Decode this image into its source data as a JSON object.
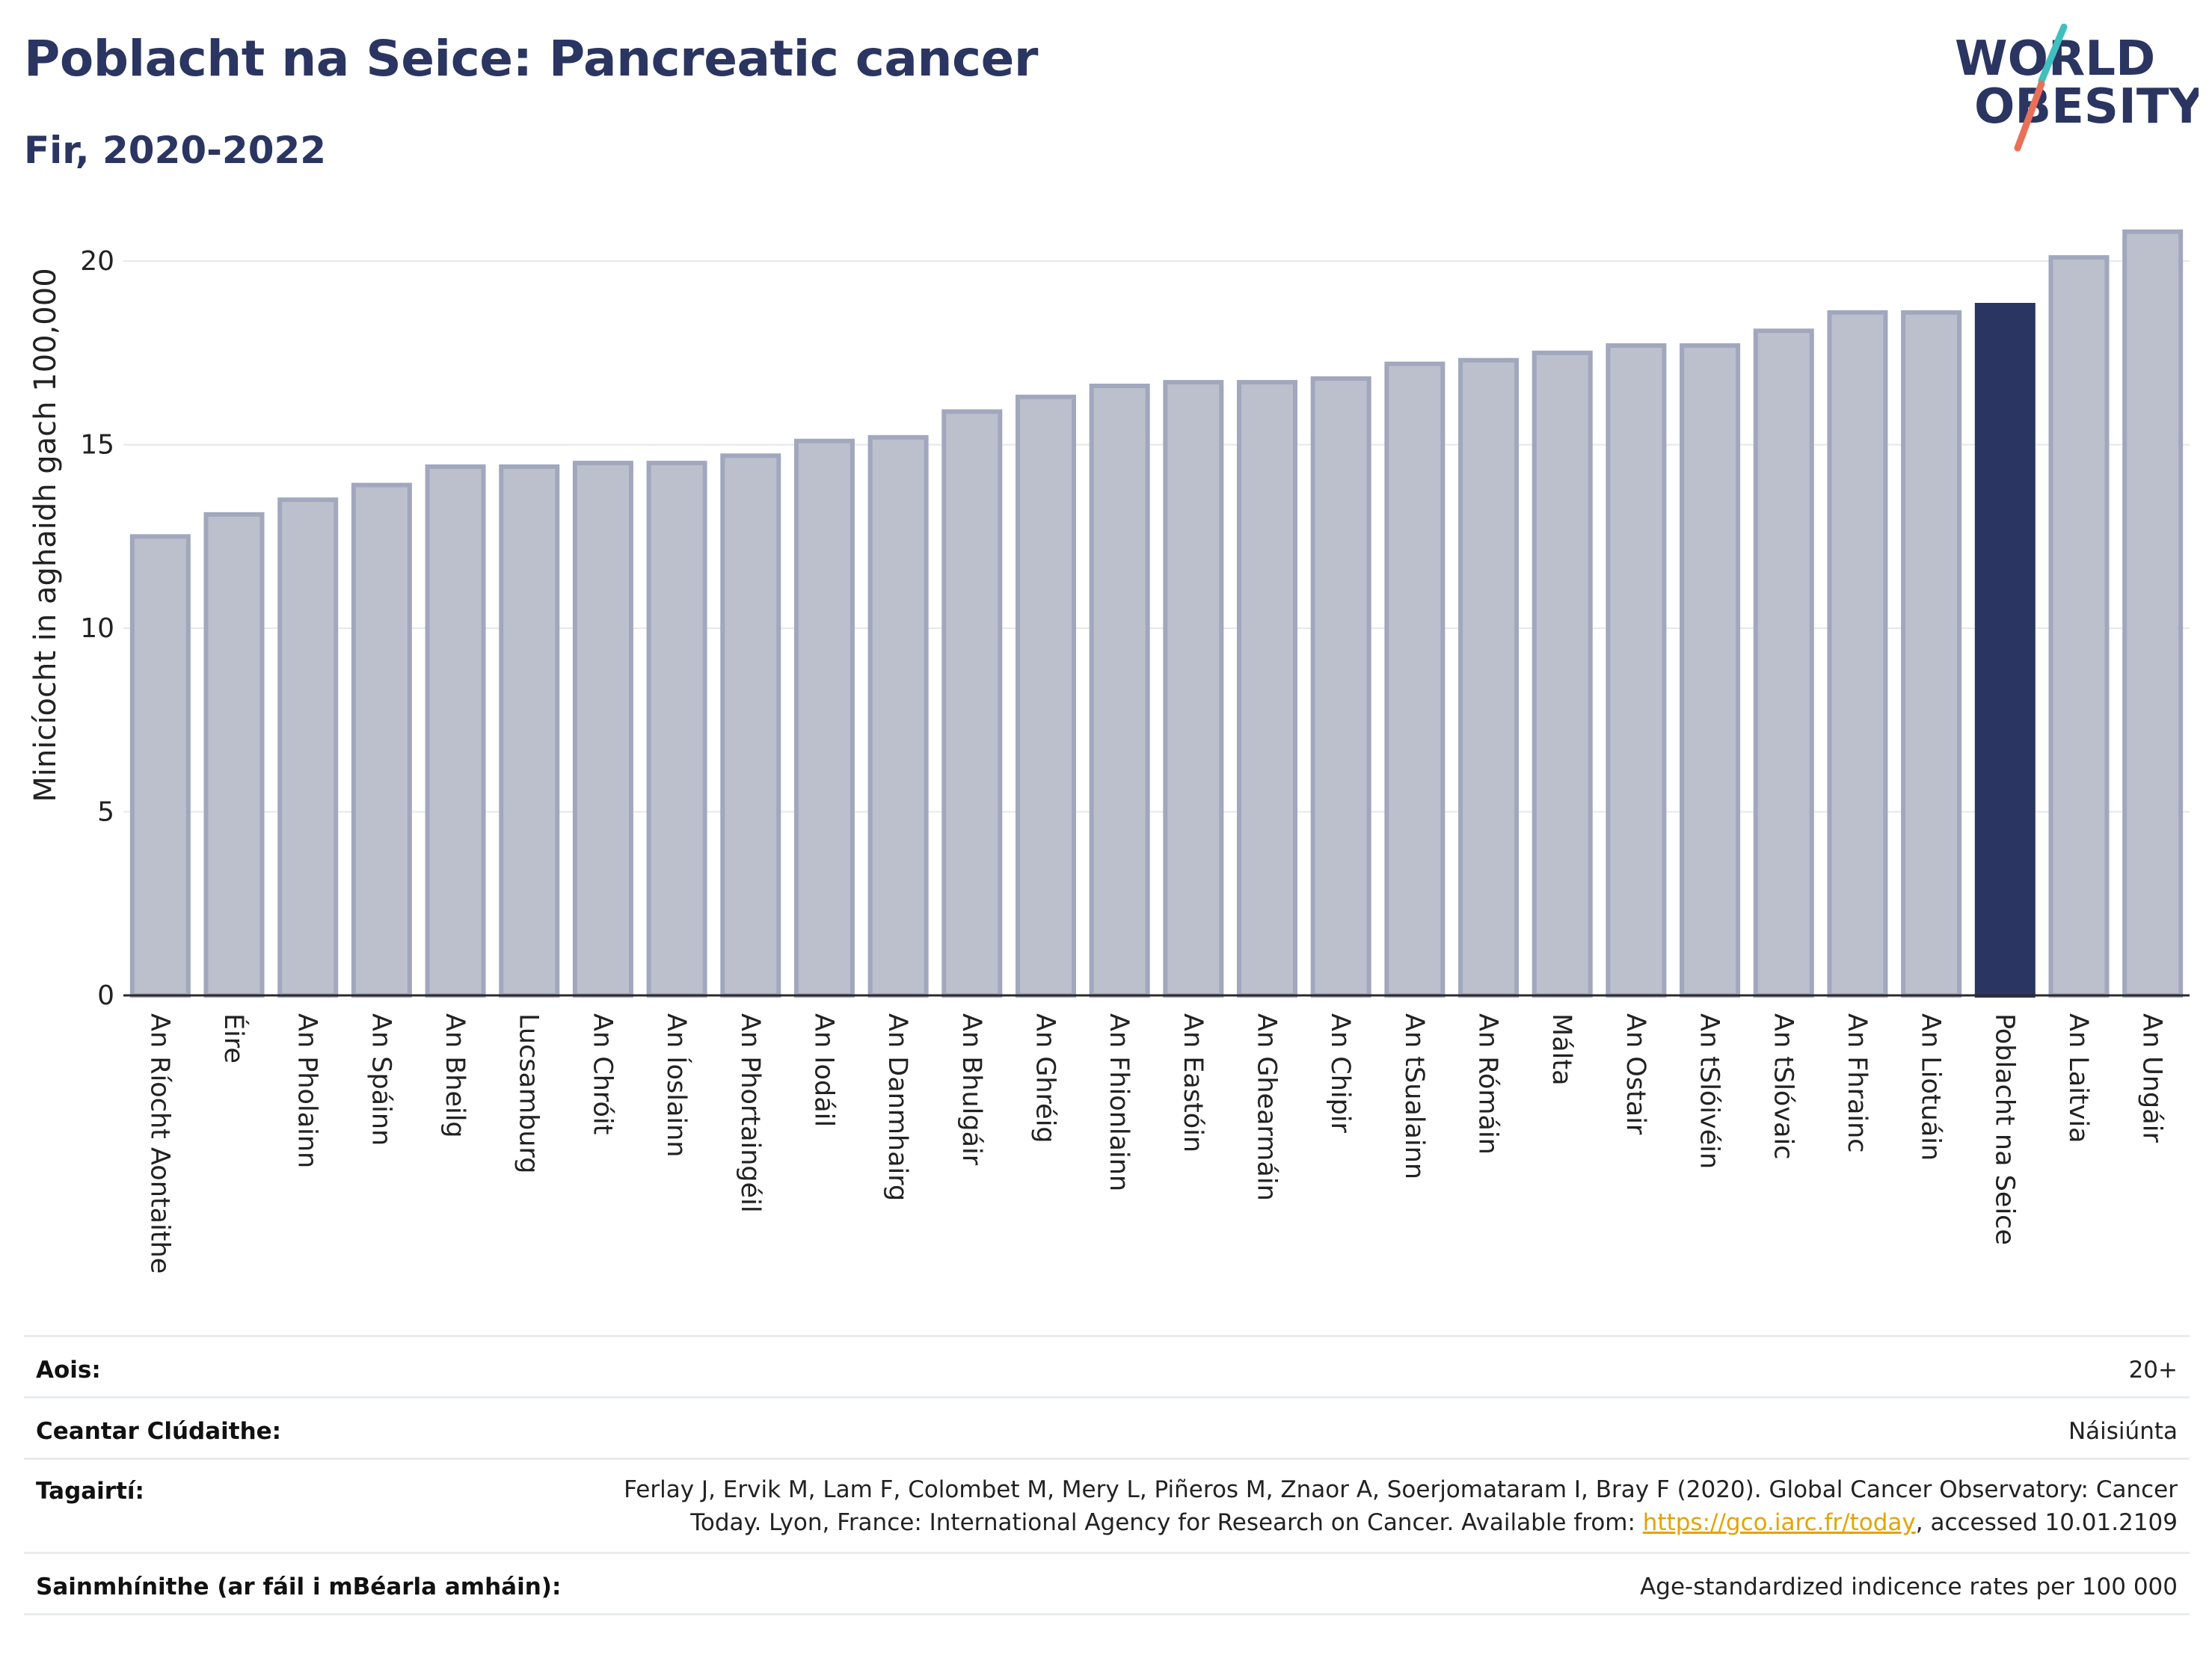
{
  "header": {
    "title": "Poblacht na Seice: Pancreatic cancer",
    "subtitle": "Fir, 2020-2022"
  },
  "logo": {
    "line1": "WORLD",
    "line2": "OBESITY",
    "colors": {
      "text": "#2b3561",
      "slash_teal": "#3fbfbf",
      "slash_coral": "#e8705a"
    }
  },
  "chart_data": {
    "type": "bar",
    "ylabel": "Minicíocht in aghaidh gach 100,000",
    "ylim": [
      0,
      21
    ],
    "yticks": [
      0,
      5,
      10,
      15,
      20
    ],
    "grid": true,
    "highlight_category": "Poblacht na Seice",
    "colors": {
      "bar": "#bcc0cd",
      "bar_border": "#a1a7bd",
      "highlight": "#2b3561",
      "grid": "#e6e8ed"
    },
    "categories": [
      "An Ríocht Aontaithe",
      "Éire",
      "An Pholainn",
      "An Spáinn",
      "An Bheilg",
      "Lucsamburg",
      "An Chróit",
      "An Íoslainn",
      "An Phortaingéil",
      "An Iodáil",
      "An Danmhairg",
      "An Bhulgáir",
      "An Ghréig",
      "An Fhionlainn",
      "An Eastóin",
      "An Ghearmáin",
      "An Chipir",
      "An tSualainn",
      "An Rómáin",
      "Málta",
      "An Ostair",
      "An tSlóivéin",
      "An tSlóvaic",
      "An Fhrainc",
      "An Liotuáin",
      "Poblacht na Seice",
      "An Laitvia",
      "An Ungáir"
    ],
    "values": [
      12.5,
      13.1,
      13.5,
      13.9,
      14.4,
      14.4,
      14.5,
      14.5,
      14.7,
      15.1,
      15.2,
      15.9,
      16.3,
      16.6,
      16.7,
      16.7,
      16.8,
      17.2,
      17.3,
      17.5,
      17.7,
      17.7,
      18.1,
      18.6,
      18.6,
      18.8,
      20.1,
      20.8
    ]
  },
  "info": {
    "age_label": "Aois:",
    "age_value": "20+",
    "coverage_label": "Ceantar Clúdaithe:",
    "coverage_value": "Náisiúnta",
    "refs_label": "Tagairtí:",
    "refs_line1": "Ferlay J, Ervik M, Lam F, Colombet M, Mery L, Piñeros M, Znaor A, Soerjomataram I, Bray F (2020). Global Cancer Observatory: Cancer",
    "refs_line2_pre": "Today. Lyon, France: International Agency for Research on Cancer. Available from: ",
    "refs_link": "https://gco.iarc.fr/today",
    "refs_line2_post": ", accessed 10.01.2109",
    "defs_label": "Sainmhínithe (ar fáil i mBéarla amháin):",
    "defs_value": "Age-standardized indicence rates per 100 000"
  }
}
